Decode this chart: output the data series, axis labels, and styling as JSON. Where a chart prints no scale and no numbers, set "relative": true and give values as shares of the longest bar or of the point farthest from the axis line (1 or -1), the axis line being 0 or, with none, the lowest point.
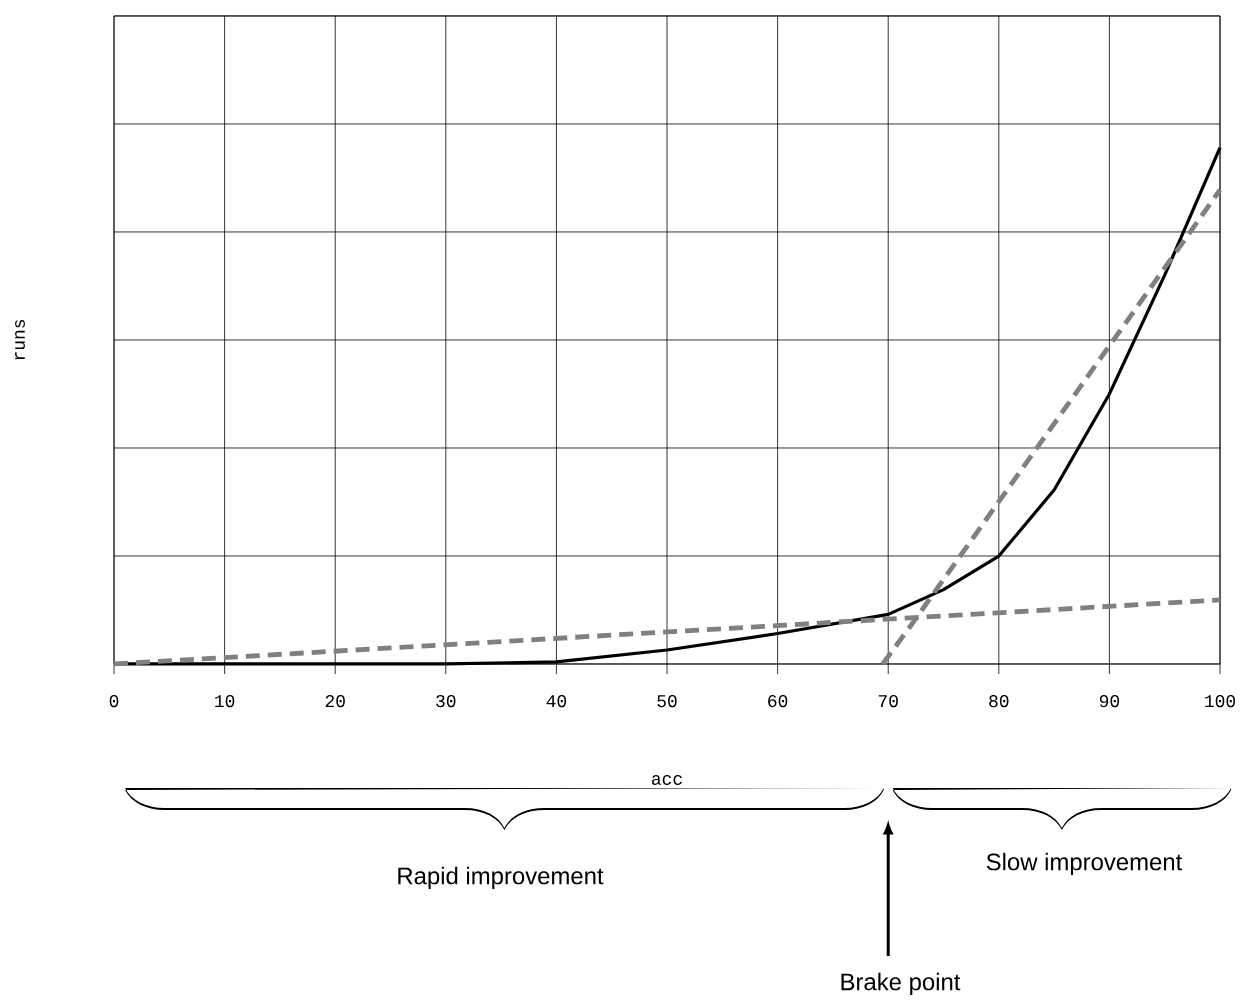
{
  "chart_data": {
    "type": "line",
    "xlabel": "acc",
    "ylabel": "runs",
    "relative": true,
    "grid": true,
    "marker": "none",
    "xlim": [
      0,
      100
    ],
    "xticks": [
      0,
      10,
      20,
      30,
      40,
      50,
      60,
      70,
      80,
      90,
      100
    ],
    "series": [
      {
        "color": "#000000",
        "line_style": "solid",
        "x": [
          0,
          30,
          40,
          50,
          60,
          70,
          75,
          80,
          85,
          90,
          95,
          100
        ],
        "values": [
          0,
          0,
          0.004,
          0.027,
          0.059,
          0.096,
          0.144,
          0.209,
          0.337,
          0.523,
          0.753,
          1
        ]
      },
      {
        "color": "#808080",
        "line_style": "dashed",
        "x": [
          0,
          100
        ],
        "values": [
          0,
          0.124
        ]
      },
      {
        "color": "#808080",
        "line_style": "dashed",
        "x": [
          69.5,
          72,
          100
        ],
        "values": [
          0,
          0.073,
          0.918
        ]
      }
    ],
    "annotations": [
      "Rapid improvement",
      "Slow improvement",
      "Brake point"
    ]
  }
}
